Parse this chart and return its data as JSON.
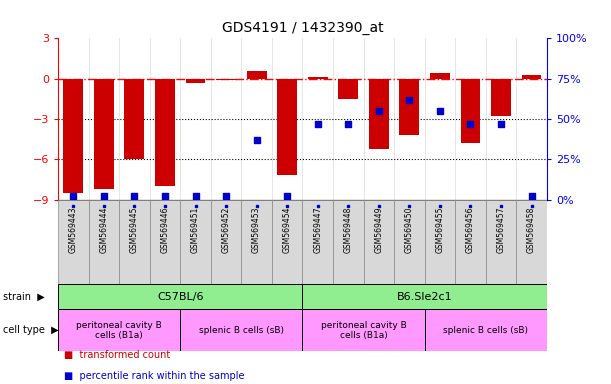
{
  "title": "GDS4191 / 1432390_at",
  "samples": [
    "GSM569443",
    "GSM569444",
    "GSM569445",
    "GSM569446",
    "GSM569451",
    "GSM569452",
    "GSM569453",
    "GSM569454",
    "GSM569447",
    "GSM569448",
    "GSM569449",
    "GSM569450",
    "GSM569455",
    "GSM569456",
    "GSM569457",
    "GSM569458"
  ],
  "bar_values": [
    -8.5,
    -8.2,
    -6.0,
    -8.0,
    -0.3,
    -0.1,
    0.6,
    -7.2,
    0.15,
    -1.5,
    -5.2,
    -4.2,
    0.4,
    -4.8,
    -2.8,
    0.25
  ],
  "dot_values": [
    2,
    2,
    2,
    2,
    2,
    2,
    37,
    2,
    47,
    47,
    55,
    62,
    55,
    47,
    47,
    2
  ],
  "red_bar_color": "#CC0000",
  "blue_dot_color": "#0000CC",
  "ylim_left": [
    -9,
    3
  ],
  "ylim_right": [
    0,
    100
  ],
  "strain_groups": [
    {
      "label": "C57BL/6",
      "start": 0,
      "end": 8,
      "color": "#90EE90"
    },
    {
      "label": "B6.Sle2c1",
      "start": 8,
      "end": 16,
      "color": "#90EE90"
    }
  ],
  "cell_type_groups": [
    {
      "label": "peritoneal cavity B\ncells (B1a)",
      "start": 0,
      "end": 4,
      "color": "#FF99FF"
    },
    {
      "label": "splenic B cells (sB)",
      "start": 4,
      "end": 8,
      "color": "#FF99FF"
    },
    {
      "label": "peritoneal cavity B\ncells (B1a)",
      "start": 8,
      "end": 12,
      "color": "#FF99FF"
    },
    {
      "label": "splenic B cells (sB)",
      "start": 12,
      "end": 16,
      "color": "#FF99FF"
    }
  ],
  "legend_items": [
    {
      "label": "transformed count",
      "color": "#CC0000"
    },
    {
      "label": "percentile rank within the sample",
      "color": "#0000CC"
    }
  ]
}
